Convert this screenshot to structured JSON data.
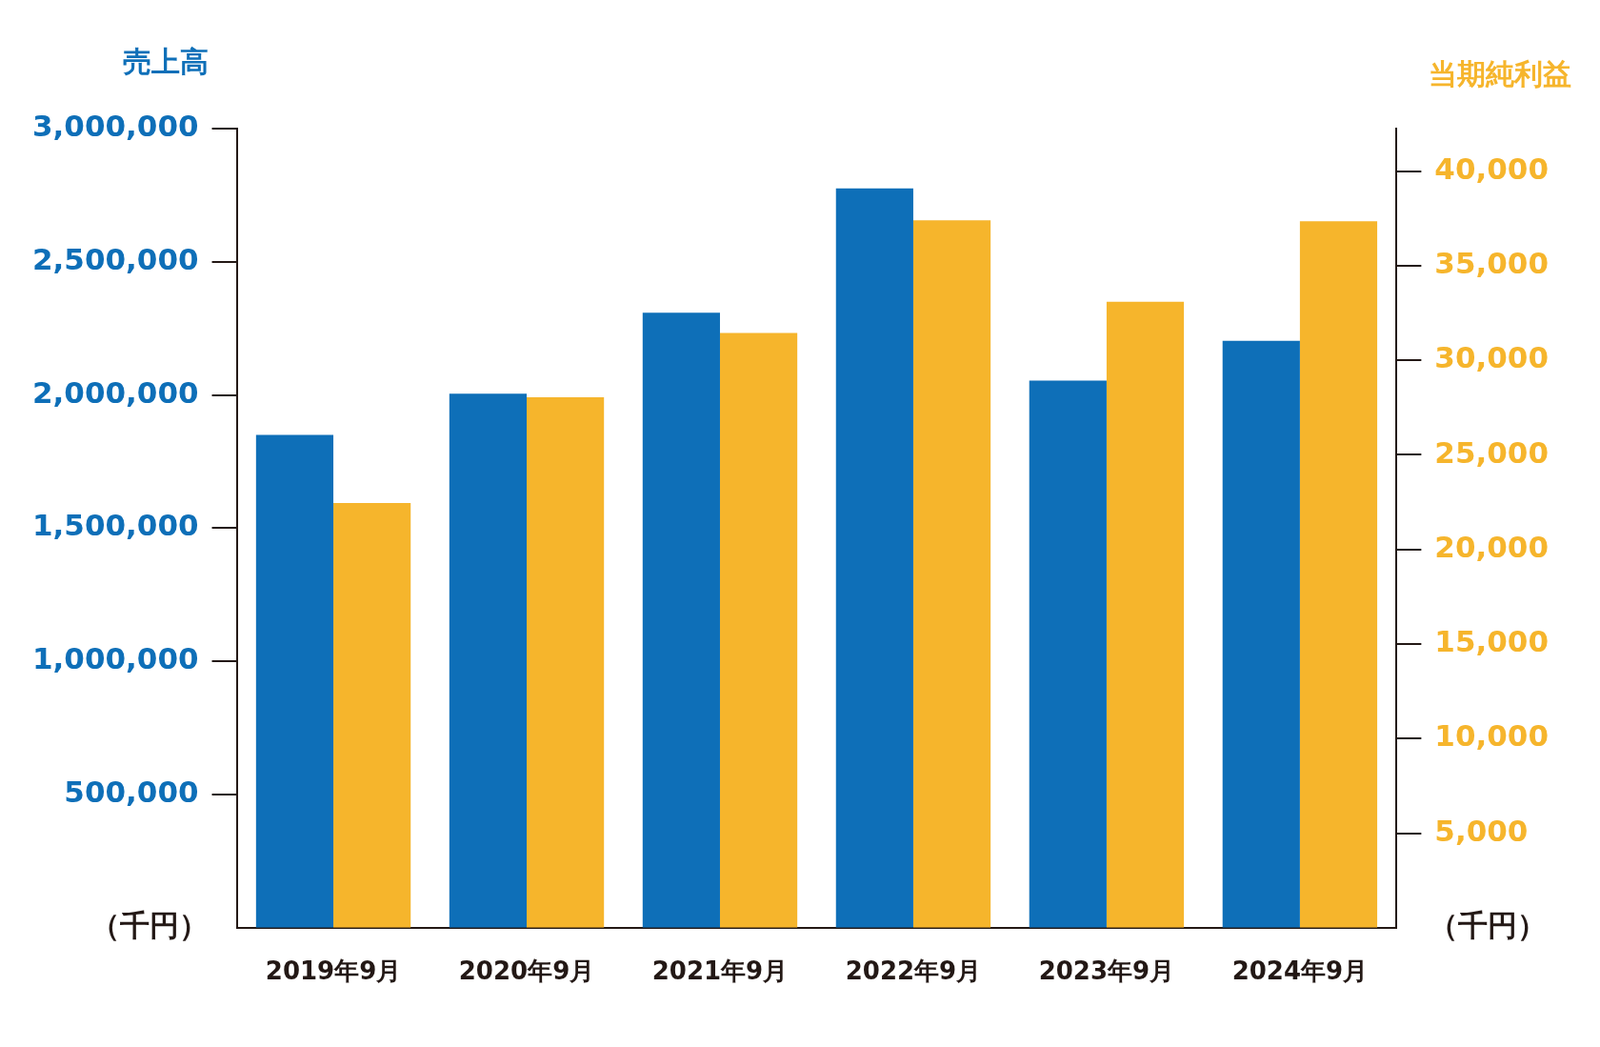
{
  "chart_data": {
    "type": "bar",
    "categories": [
      "2019年9月",
      "2020年9月",
      "2021年9月",
      "2022年9月",
      "2023年9月",
      "2024年9月"
    ],
    "series": [
      {
        "name": "売上高",
        "color": "#0e6fb8",
        "axis": "y",
        "values": [
          1850000,
          2005000,
          2309000,
          2776000,
          2054000,
          2203000
        ]
      },
      {
        "name": "当期純利益",
        "color": "#f6b52c",
        "axis": "y2",
        "values": [
          22450,
          28050,
          31450,
          37400,
          33100,
          37350
        ]
      }
    ],
    "y_unit": "（千円）",
    "y2_unit": "（千円）",
    "ylim": [
      0,
      3000000
    ],
    "yticks": [
      {
        "value": 500000,
        "label": "500,000"
      },
      {
        "value": 1000000,
        "label": "1,000,000"
      },
      {
        "value": 1500000,
        "label": "1,500,000"
      },
      {
        "value": 2000000,
        "label": "2,000,000"
      },
      {
        "value": 2500000,
        "label": "2,500,000"
      },
      {
        "value": 3000000,
        "label": "3,000,000"
      }
    ],
    "y2lim": [
      0,
      42250
    ],
    "y2ticks": [
      {
        "value": 5000,
        "label": "5,000"
      },
      {
        "value": 10000,
        "label": "10,000"
      },
      {
        "value": 15000,
        "label": "15,000"
      },
      {
        "value": 20000,
        "label": "20,000"
      },
      {
        "value": 25000,
        "label": "25,000"
      },
      {
        "value": 30000,
        "label": "30,000"
      },
      {
        "value": 35000,
        "label": "35,000"
      },
      {
        "value": 40000,
        "label": "40,000"
      }
    ],
    "grid": false
  }
}
